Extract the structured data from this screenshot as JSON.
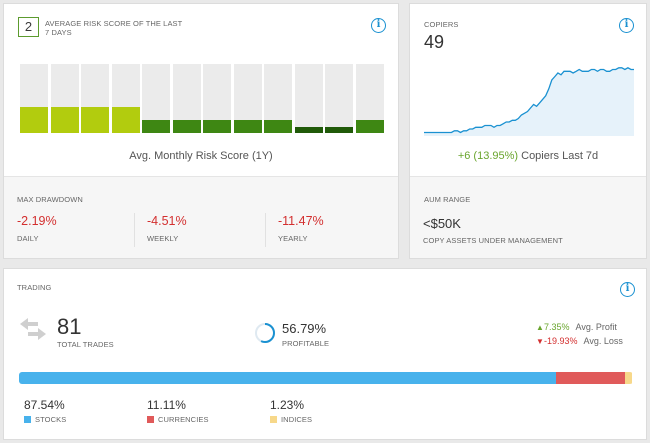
{
  "risk": {
    "score": "2",
    "caption": "AVERAGE RISK SCORE OF THE LAST 7 DAYS",
    "monthly_label": "Avg. Monthly Risk Score (1Y)",
    "info_icon": "info-icon",
    "bars": [
      {
        "level": 0.38,
        "color": "#b2cc0e"
      },
      {
        "level": 0.38,
        "color": "#b2cc0e"
      },
      {
        "level": 0.38,
        "color": "#b2cc0e"
      },
      {
        "level": 0.38,
        "color": "#b2cc0e"
      },
      {
        "level": 0.19,
        "color": "#3e8713"
      },
      {
        "level": 0.19,
        "color": "#3e8713"
      },
      {
        "level": 0.19,
        "color": "#3e8713"
      },
      {
        "level": 0.19,
        "color": "#3e8713"
      },
      {
        "level": 0.19,
        "color": "#3e8713"
      },
      {
        "level": 0.09,
        "color": "#205a09"
      },
      {
        "level": 0.09,
        "color": "#205a09"
      },
      {
        "level": 0.19,
        "color": "#3e8713"
      }
    ]
  },
  "drawdown": {
    "title": "MAX DRAWDOWN",
    "items": [
      {
        "value": "-2.19%",
        "label": "DAILY"
      },
      {
        "value": "-4.51%",
        "label": "WEEKLY"
      },
      {
        "value": "-11.47%",
        "label": "YEARLY"
      }
    ]
  },
  "copiers": {
    "caption": "COPIERS",
    "value": "49",
    "change": "+6 (13.95%)",
    "change_label": "Copiers Last 7d",
    "info_icon": "info-icon",
    "trend": [
      2,
      2,
      2,
      2,
      2,
      2,
      2,
      2,
      2,
      2,
      3,
      3,
      2,
      3,
      3,
      4,
      4,
      5,
      5,
      5,
      6,
      6,
      6,
      5,
      6,
      6,
      7,
      8,
      8,
      9,
      9,
      10,
      12,
      13,
      14,
      16,
      18,
      17,
      19,
      21,
      23,
      27,
      32,
      34,
      36,
      35,
      37,
      37,
      37,
      36,
      37,
      38,
      37,
      37,
      37,
      38,
      38,
      37,
      38,
      38,
      37,
      37,
      38,
      38,
      39,
      39,
      38,
      39,
      38,
      38
    ]
  },
  "aum": {
    "caption": "AUM RANGE",
    "value": "<$50K",
    "label": "COPY ASSETS UNDER MANAGEMENT"
  },
  "trading": {
    "caption": "TRADING",
    "info_icon": "info-icon",
    "total_trades": "81",
    "total_label": "TOTAL TRADES",
    "profitable": "56.79%",
    "profitable_label": "PROFITABLE",
    "profitable_fraction": 0.5679,
    "avg_profit": "7.35%",
    "avg_profit_label": "Avg. Profit",
    "avg_loss": "-19.93%",
    "avg_loss_label": "Avg. Loss",
    "allocation": [
      {
        "value": "87.54%",
        "label": "STOCKS",
        "fraction": 0.8754,
        "color": "#48b2ec"
      },
      {
        "value": "11.11%",
        "label": "CURRENCIES",
        "fraction": 0.1111,
        "color": "#e05a5a"
      },
      {
        "value": "1.23%",
        "label": "INDICES",
        "fraction": 0.0123,
        "color": "#f7d88a"
      }
    ]
  }
}
